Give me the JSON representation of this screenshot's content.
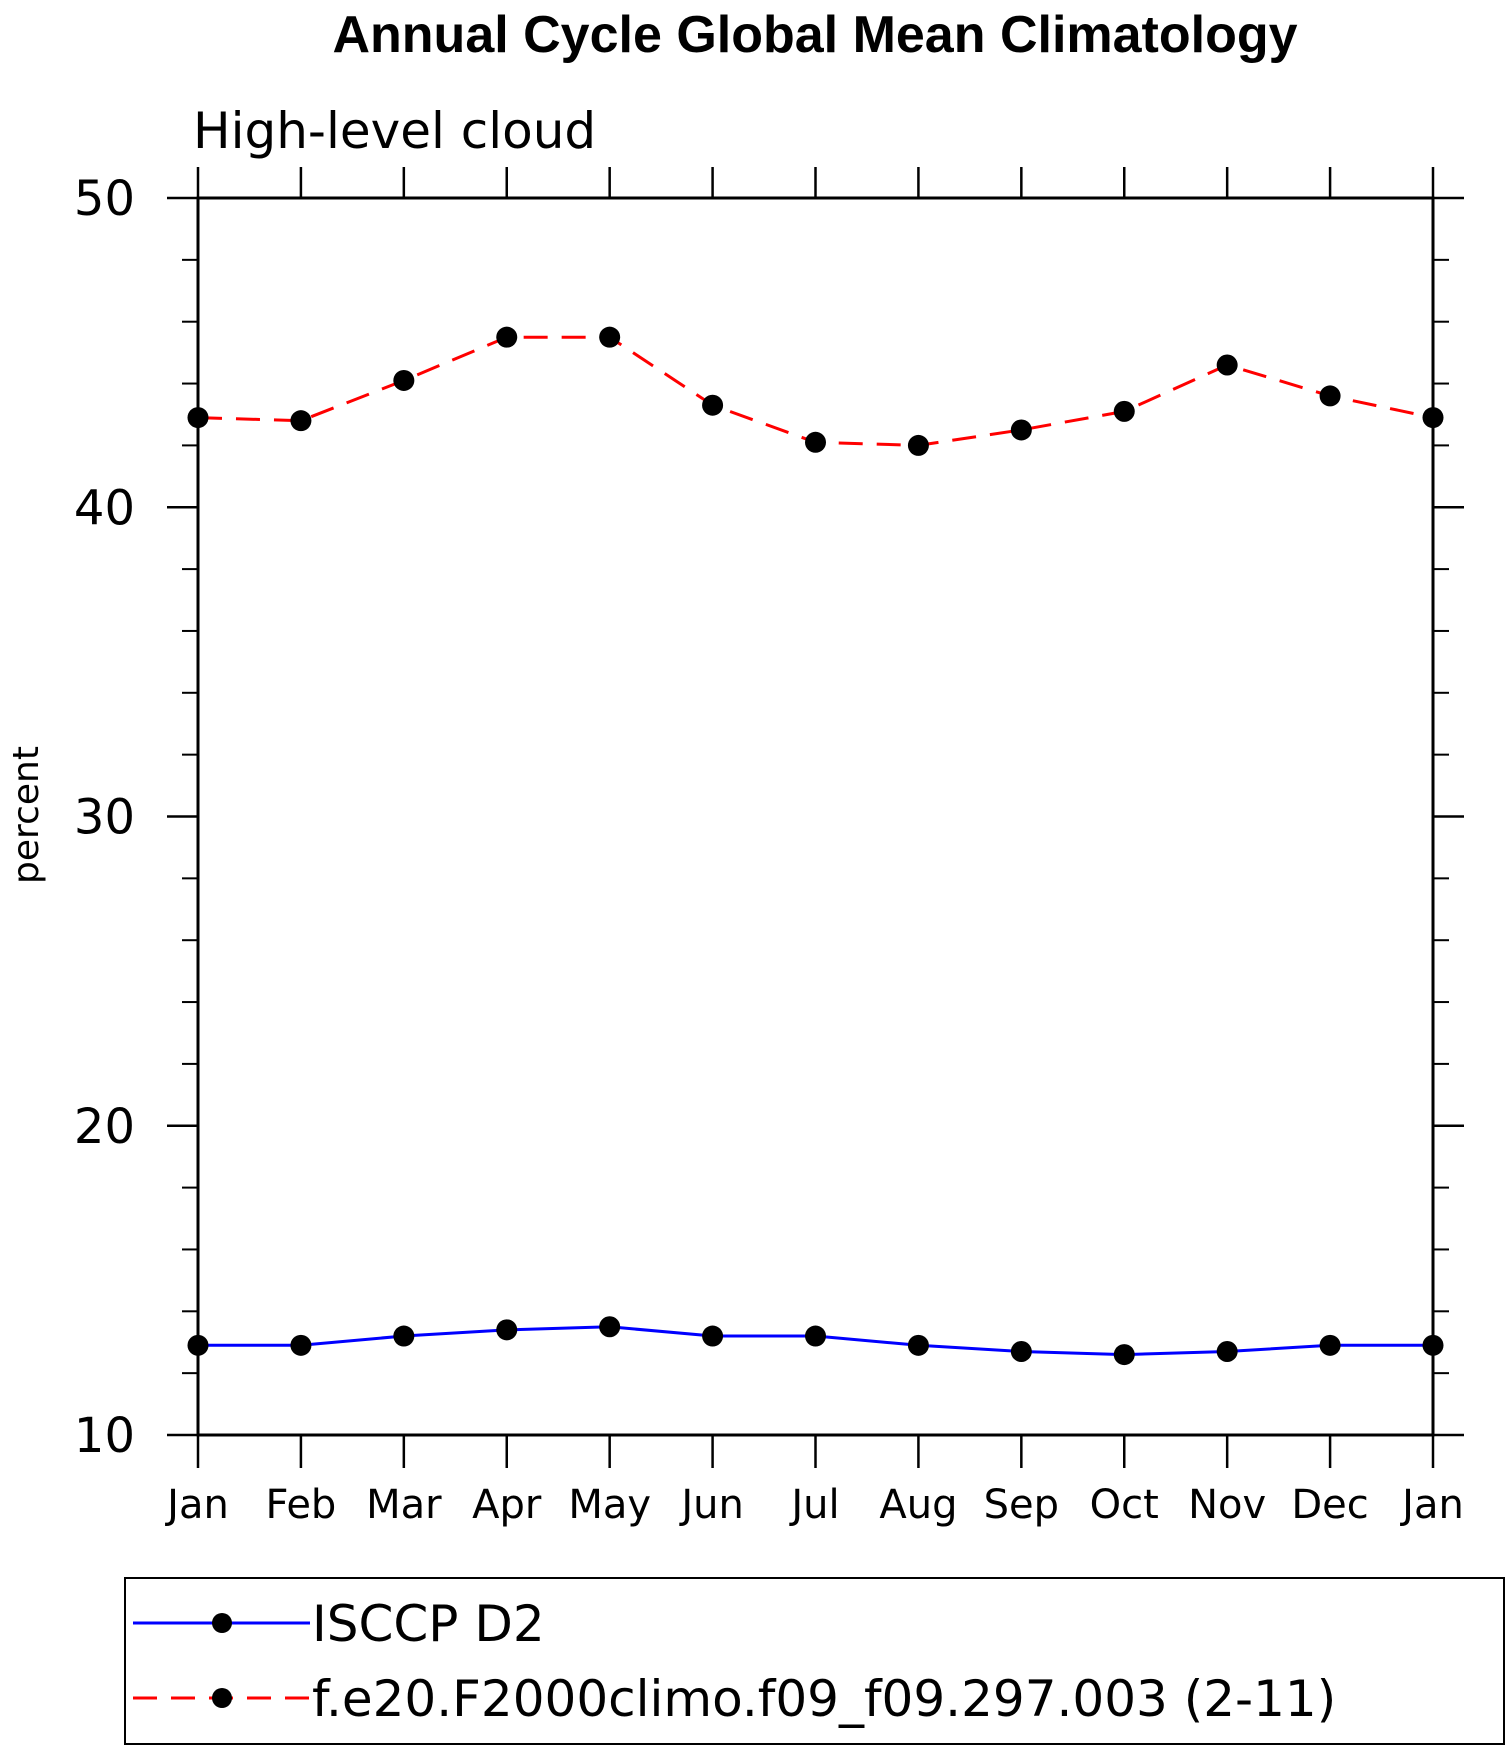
{
  "chart_data": {
    "type": "line",
    "title": "Annual Cycle Global Mean Climatology",
    "subtitle": "High-level cloud",
    "ylabel": "percent",
    "xlabel": "",
    "categories": [
      "Jan",
      "Feb",
      "Mar",
      "Apr",
      "May",
      "Jun",
      "Jul",
      "Aug",
      "Sep",
      "Oct",
      "Nov",
      "Dec",
      "Jan"
    ],
    "ylim": [
      10,
      50
    ],
    "yticks": [
      "10",
      "20",
      "30",
      "40",
      "50"
    ],
    "grid": false,
    "legend_position": "bottom",
    "series": [
      {
        "name": "ISCCP D2",
        "color": "#0000ff",
        "dash": "solid",
        "marker": "filled-circle",
        "values": [
          12.9,
          12.9,
          13.2,
          13.4,
          13.5,
          13.2,
          13.2,
          12.9,
          12.7,
          12.6,
          12.7,
          12.9,
          12.9
        ]
      },
      {
        "name": "f.e20.F2000climo.f09_f09.297.003 (2-11)",
        "color": "#ff0000",
        "dash": "dashed",
        "marker": "filled-circle",
        "values": [
          42.9,
          42.8,
          44.1,
          45.5,
          45.5,
          43.3,
          42.1,
          42.0,
          42.5,
          43.1,
          44.6,
          43.6,
          42.9
        ]
      }
    ]
  }
}
